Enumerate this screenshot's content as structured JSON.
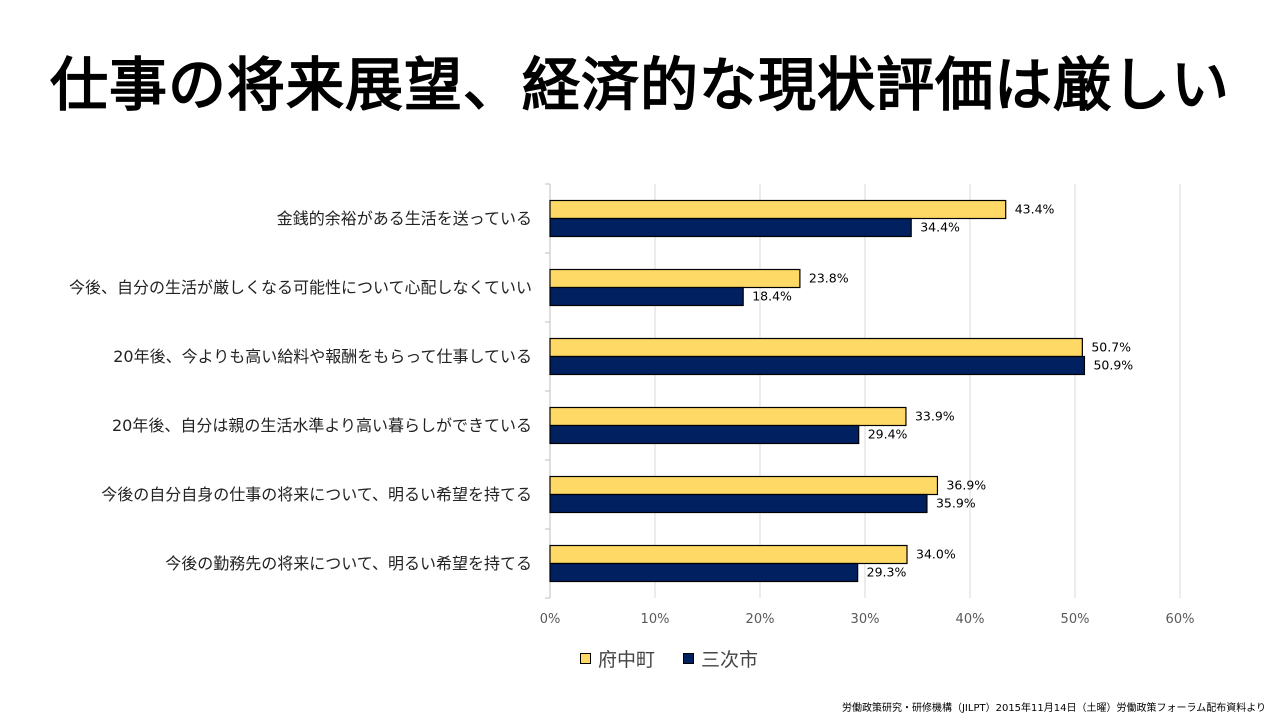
{
  "slide": {
    "title": "仕事の将来展望、経済的な現状評価は厳しい",
    "source": "労働政策研究・研修機構（JILPT）2015年11月14日（土曜）労働政策フォーラム配布資料より"
  },
  "chart_data": {
    "type": "bar",
    "orientation": "horizontal",
    "categories": [
      "金銭的余裕がある生活を送っている",
      "今後、自分の生活が厳しくなる可能性について心配しなくていい",
      "20年後、今よりも高い給料や報酬をもらって仕事している",
      "20年後、自分は親の生活水準より高い暮らしができている",
      "今後の自分自身の仕事の将来について、明るい希望を持てる",
      "今後の勤務先の将来について、明るい希望を持てる"
    ],
    "series": [
      {
        "name": "府中町",
        "color": "#FFD966",
        "values": [
          43.4,
          23.8,
          50.7,
          33.9,
          36.9,
          34.0
        ],
        "labels": [
          "43.4%",
          "23.8%",
          "50.7%",
          "33.9%",
          "36.9%",
          "34.0%"
        ]
      },
      {
        "name": "三次市",
        "color": "#002060",
        "values": [
          34.4,
          18.4,
          50.9,
          29.4,
          35.9,
          29.3
        ],
        "labels": [
          "34.4%",
          "18.4%",
          "50.9%",
          "29.4%",
          "35.9%",
          "29.3%"
        ]
      }
    ],
    "xlim": [
      0,
      60
    ],
    "xticks": [
      0,
      10,
      20,
      30,
      40,
      50,
      60
    ],
    "xtick_labels": [
      "0%",
      "10%",
      "20%",
      "30%",
      "40%",
      "50%",
      "60%"
    ],
    "grid": true,
    "legend_position": "bottom"
  }
}
